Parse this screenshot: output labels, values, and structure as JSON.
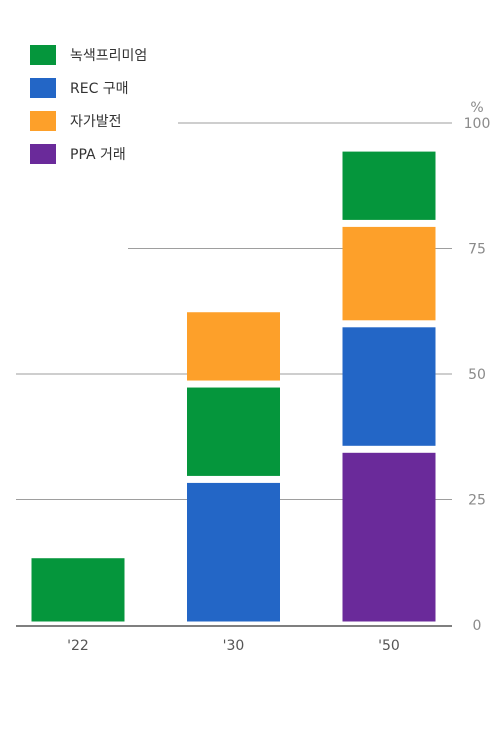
{
  "chart_data": {
    "type": "bar",
    "stacked": true,
    "categories": [
      "'22",
      "'30",
      "'50"
    ],
    "y_unit": "%",
    "ylim": [
      0,
      100
    ],
    "yticks": [
      0,
      25,
      50,
      75,
      100
    ],
    "grid": true,
    "legend_position": "top-left",
    "series": [
      {
        "name": "PPA 거래",
        "color": "#6a2a9a",
        "values": [
          0,
          0,
          35
        ]
      },
      {
        "name": "REC 구매",
        "color": "#2366c6",
        "values": [
          0,
          29,
          25
        ]
      },
      {
        "name": "녹색프리미엄",
        "color": "#05963c",
        "values": [
          14,
          19,
          0
        ]
      },
      {
        "name": "자가발전",
        "color": "#fda02a",
        "values": [
          0,
          15,
          20
        ]
      },
      {
        "name": "녹색프리미엄",
        "color": "#05963c",
        "values": [
          0,
          0,
          15
        ]
      }
    ],
    "legend": [
      {
        "name": "녹색프리미엄",
        "color": "#05963c"
      },
      {
        "name": "REC 구매",
        "color": "#2366c6"
      },
      {
        "name": "자가발전",
        "color": "#fda02a"
      },
      {
        "name": "PPA 거래",
        "color": "#6a2a9a"
      }
    ]
  }
}
